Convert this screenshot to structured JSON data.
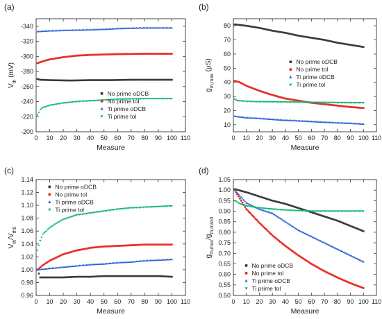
{
  "series_colors": {
    "No prime oDCB": "#3a3a3a",
    "No prime tol": "#e8302a",
    "Ti prime oDCB": "#2a62d8",
    "Ti prime tol": "#10b870"
  },
  "chart_data": [
    {
      "panel": "(a)",
      "type": "scatter",
      "xlabel": "Measure",
      "ylabel": "V_th (mV)",
      "xlim": [
        0,
        110
      ],
      "ylim": [
        -200,
        -350
      ],
      "y_reversed": true,
      "xticks": [
        0,
        10,
        20,
        30,
        40,
        50,
        60,
        70,
        80,
        90,
        100,
        110
      ],
      "yticks": [
        -200,
        -220,
        -240,
        -260,
        -280,
        -300,
        -320,
        -340
      ],
      "legend_position": "lower-right",
      "legend_entries": [
        "No prime oDCB",
        "No prime tol",
        "Ti prime oDCB",
        "Ti prime tol"
      ],
      "series": [
        {
          "name": "No prime oDCB",
          "points": [
            [
              1,
              -270
            ],
            [
              3,
              -269
            ],
            [
              10,
              -268.5
            ],
            [
              25,
              -268
            ],
            [
              40,
              -268.5
            ],
            [
              55,
              -268.5
            ],
            [
              70,
              -269
            ],
            [
              85,
              -269
            ],
            [
              99,
              -269
            ]
          ]
        },
        {
          "name": "No prime tol",
          "points": [
            [
              1,
              -291
            ],
            [
              5,
              -293.5
            ],
            [
              10,
              -296
            ],
            [
              20,
              -299
            ],
            [
              30,
              -301
            ],
            [
              40,
              -302
            ],
            [
              50,
              -302.5
            ],
            [
              60,
              -303
            ],
            [
              80,
              -303.5
            ],
            [
              100,
              -303.5
            ]
          ]
        },
        {
          "name": "Ti prime oDCB",
          "points": [
            [
              1,
              -333
            ],
            [
              10,
              -334
            ],
            [
              20,
              -334.5
            ],
            [
              30,
              -335
            ],
            [
              40,
              -335.5
            ],
            [
              50,
              -336
            ],
            [
              60,
              -337
            ],
            [
              70,
              -337.5
            ],
            [
              80,
              -338
            ],
            [
              90,
              -338
            ],
            [
              100,
              -338
            ]
          ]
        },
        {
          "name": "Ti prime tol",
          "points": [
            [
              1,
              -222
            ],
            [
              3,
              -229
            ],
            [
              5,
              -232
            ],
            [
              10,
              -235
            ],
            [
              20,
              -238
            ],
            [
              30,
              -240
            ],
            [
              40,
              -241
            ],
            [
              50,
              -242
            ],
            [
              60,
              -243
            ],
            [
              70,
              -243.5
            ],
            [
              80,
              -244
            ],
            [
              90,
              -244
            ],
            [
              100,
              -244
            ]
          ]
        }
      ]
    },
    {
      "panel": "(b)",
      "type": "scatter",
      "xlabel": "Measure",
      "ylabel": "g_m,max (μS)",
      "xlim": [
        0,
        110
      ],
      "ylim": [
        5,
        85
      ],
      "xticks": [
        0,
        10,
        20,
        30,
        40,
        50,
        60,
        70,
        80,
        90,
        100,
        110
      ],
      "yticks": [
        10,
        20,
        30,
        40,
        50,
        60,
        70,
        80
      ],
      "legend_position": "right",
      "legend_entries": [
        "No prime oDCB",
        "No prime tol",
        "Ti prime oDCB",
        "Ti prime tol"
      ],
      "series": [
        {
          "name": "No prime oDCB",
          "points": [
            [
              1,
              81
            ],
            [
              10,
              80
            ],
            [
              20,
              78.5
            ],
            [
              30,
              76.5
            ],
            [
              40,
              75
            ],
            [
              50,
              73
            ],
            [
              60,
              71.5
            ],
            [
              70,
              70
            ],
            [
              80,
              68
            ],
            [
              90,
              66.5
            ],
            [
              100,
              65
            ]
          ]
        },
        {
          "name": "No prime tol",
          "points": [
            [
              1,
              41
            ],
            [
              5,
              40
            ],
            [
              10,
              37.5
            ],
            [
              20,
              34
            ],
            [
              30,
              31
            ],
            [
              40,
              28.5
            ],
            [
              50,
              27
            ],
            [
              60,
              25.5
            ],
            [
              70,
              24.5
            ],
            [
              80,
              23.5
            ],
            [
              90,
              22.5
            ],
            [
              100,
              21.8
            ]
          ]
        },
        {
          "name": "Ti prime oDCB",
          "points": [
            [
              1,
              16
            ],
            [
              10,
              15
            ],
            [
              20,
              14.5
            ],
            [
              30,
              13.8
            ],
            [
              40,
              13.2
            ],
            [
              50,
              12.8
            ],
            [
              60,
              12.3
            ],
            [
              70,
              11.8
            ],
            [
              80,
              11.4
            ],
            [
              90,
              11
            ],
            [
              100,
              10.5
            ]
          ]
        },
        {
          "name": "Ti prime tol",
          "points": [
            [
              1,
              28
            ],
            [
              3,
              27
            ],
            [
              10,
              26.5
            ],
            [
              20,
              26.2
            ],
            [
              40,
              26
            ],
            [
              60,
              25.8
            ],
            [
              80,
              25.6
            ],
            [
              100,
              25.5
            ]
          ]
        }
      ]
    },
    {
      "panel": "(c)",
      "type": "scatter",
      "xlabel": "Measure",
      "ylabel": "V_th/V_th0",
      "xlim": [
        0,
        110
      ],
      "ylim": [
        0.96,
        1.14
      ],
      "xticks": [
        0,
        10,
        20,
        30,
        40,
        50,
        60,
        70,
        80,
        90,
        100,
        110
      ],
      "yticks": [
        0.96,
        0.98,
        1.0,
        1.02,
        1.04,
        1.06,
        1.08,
        1.1,
        1.12,
        1.14
      ],
      "legend_position": "top-left",
      "legend_entries": [
        "No prime oDCB",
        "No prime tol",
        "Ti prime oDCB",
        "Ti prime tol"
      ],
      "series": [
        {
          "name": "No prime oDCB",
          "points": [
            [
              1,
              1.0
            ],
            [
              3,
              0.988
            ],
            [
              10,
              0.988
            ],
            [
              20,
              0.988
            ],
            [
              30,
              0.989
            ],
            [
              40,
              0.989
            ],
            [
              50,
              0.99
            ],
            [
              60,
              0.99
            ],
            [
              70,
              0.99
            ],
            [
              80,
              0.99
            ],
            [
              90,
              0.99
            ],
            [
              100,
              0.989
            ]
          ]
        },
        {
          "name": "No prime tol",
          "points": [
            [
              1,
              1.0
            ],
            [
              5,
              1.007
            ],
            [
              10,
              1.014
            ],
            [
              20,
              1.024
            ],
            [
              30,
              1.03
            ],
            [
              40,
              1.034
            ],
            [
              50,
              1.036
            ],
            [
              60,
              1.037
            ],
            [
              70,
              1.038
            ],
            [
              80,
              1.039
            ],
            [
              90,
              1.039
            ],
            [
              100,
              1.039
            ]
          ]
        },
        {
          "name": "Ti prime oDCB",
          "points": [
            [
              1,
              1.0
            ],
            [
              10,
              1.002
            ],
            [
              20,
              1.004
            ],
            [
              30,
              1.006
            ],
            [
              40,
              1.008
            ],
            [
              50,
              1.009
            ],
            [
              60,
              1.011
            ],
            [
              70,
              1.012
            ],
            [
              80,
              1.014
            ],
            [
              90,
              1.015
            ],
            [
              100,
              1.016
            ]
          ]
        },
        {
          "name": "Ti prime tol",
          "points": [
            [
              1,
              1.03
            ],
            [
              3,
              1.045
            ],
            [
              5,
              1.055
            ],
            [
              10,
              1.065
            ],
            [
              15,
              1.072
            ],
            [
              20,
              1.078
            ],
            [
              30,
              1.085
            ],
            [
              40,
              1.088
            ],
            [
              50,
              1.091
            ],
            [
              60,
              1.094
            ],
            [
              70,
              1.096
            ],
            [
              80,
              1.097
            ],
            [
              90,
              1.098
            ],
            [
              100,
              1.099
            ]
          ]
        }
      ]
    },
    {
      "panel": "(d)",
      "type": "scatter",
      "xlabel": "Measure",
      "ylabel": "g_m,max/g_m,max0",
      "xlim": [
        0,
        110
      ],
      "ylim": [
        0.5,
        1.05
      ],
      "xticks": [
        0,
        10,
        20,
        30,
        40,
        50,
        60,
        70,
        80,
        90,
        100,
        110
      ],
      "yticks": [
        0.5,
        0.55,
        0.6,
        0.65,
        0.7,
        0.75,
        0.8,
        0.85,
        0.9,
        0.95,
        1.0,
        1.05
      ],
      "legend_position": "lower-left",
      "legend_entries": [
        "No prime oDCB",
        "No prime tol",
        "Ti prime oDCB",
        "Ti prime tol"
      ],
      "series": [
        {
          "name": "No prime oDCB",
          "points": [
            [
              1,
              1.005
            ],
            [
              10,
              0.99
            ],
            [
              20,
              0.97
            ],
            [
              30,
              0.95
            ],
            [
              40,
              0.935
            ],
            [
              50,
              0.915
            ],
            [
              60,
              0.895
            ],
            [
              70,
              0.875
            ],
            [
              80,
              0.855
            ],
            [
              90,
              0.83
            ],
            [
              100,
              0.805
            ]
          ]
        },
        {
          "name": "No prime tol",
          "points": [
            [
              1,
              1.0
            ],
            [
              5,
              0.96
            ],
            [
              10,
              0.91
            ],
            [
              20,
              0.845
            ],
            [
              30,
              0.785
            ],
            [
              40,
              0.735
            ],
            [
              50,
              0.69
            ],
            [
              60,
              0.65
            ],
            [
              70,
              0.615
            ],
            [
              80,
              0.585
            ],
            [
              90,
              0.558
            ],
            [
              100,
              0.535
            ]
          ]
        },
        {
          "name": "Ti prime oDCB",
          "points": [
            [
              1,
              1.0
            ],
            [
              10,
              0.94
            ],
            [
              20,
              0.91
            ],
            [
              30,
              0.89
            ],
            [
              40,
              0.85
            ],
            [
              50,
              0.81
            ],
            [
              60,
              0.78
            ],
            [
              70,
              0.75
            ],
            [
              80,
              0.72
            ],
            [
              90,
              0.69
            ],
            [
              100,
              0.66
            ]
          ]
        },
        {
          "name": "Ti prime tol",
          "points": [
            [
              1,
              0.95
            ],
            [
              5,
              0.935
            ],
            [
              10,
              0.925
            ],
            [
              20,
              0.915
            ],
            [
              30,
              0.91
            ],
            [
              40,
              0.905
            ],
            [
              60,
              0.9
            ],
            [
              80,
              0.9
            ],
            [
              100,
              0.9
            ]
          ]
        }
      ]
    }
  ]
}
